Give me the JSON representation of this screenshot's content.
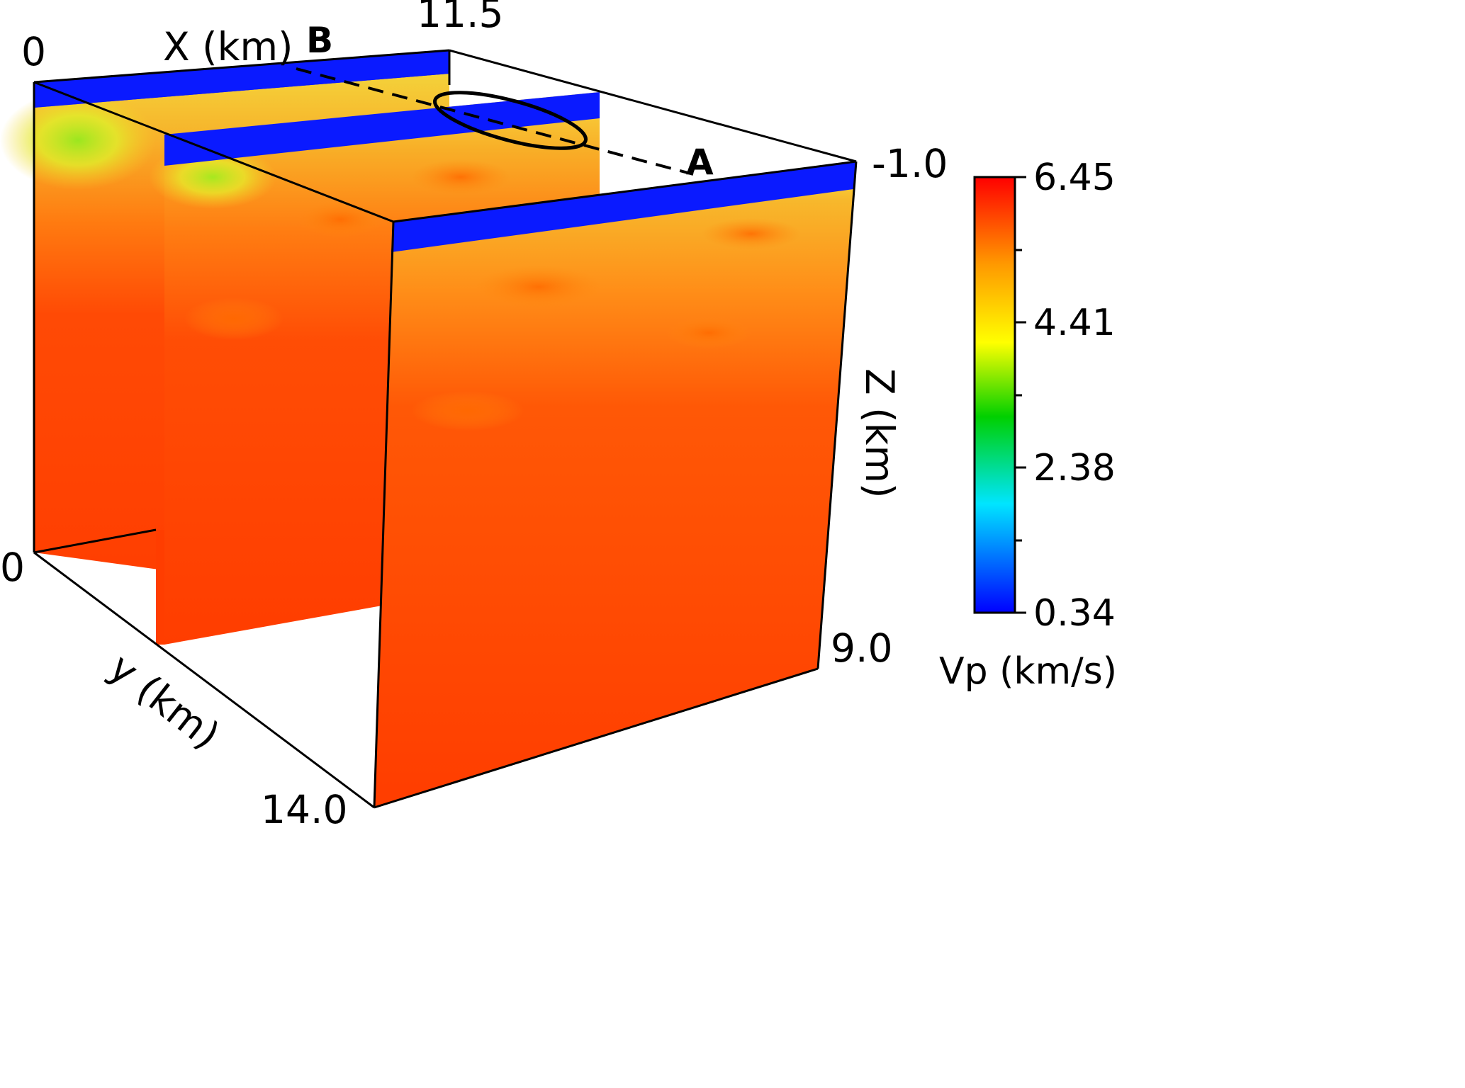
{
  "axes": {
    "x": {
      "title": "X (km)",
      "min": "0",
      "max": "11.5"
    },
    "y": {
      "title": "y (km)",
      "min": "0",
      "max": "14.0"
    },
    "z": {
      "title": "Z (km)",
      "min": "-1.0",
      "max": "9.0"
    }
  },
  "markers": {
    "a": "A",
    "b": "B"
  },
  "colorbar": {
    "title": "Vp (km/s)",
    "ticks": [
      "6.45",
      "4.41",
      "2.38",
      "0.34"
    ],
    "stops": [
      {
        "value": 0.0,
        "color": "#0000ff"
      },
      {
        "value": 0.25,
        "color": "#00e5ff"
      },
      {
        "value": 0.45,
        "color": "#00d000"
      },
      {
        "value": 0.62,
        "color": "#ffff00"
      },
      {
        "value": 0.8,
        "color": "#ff9900"
      },
      {
        "value": 1.0,
        "color": "#ff0000"
      }
    ]
  },
  "colors": {
    "water": "#0a1aff",
    "deep": "#ff3d00",
    "shallow": "#f6c02c",
    "green": "#9be61f",
    "yellow": "#ffe833"
  }
}
